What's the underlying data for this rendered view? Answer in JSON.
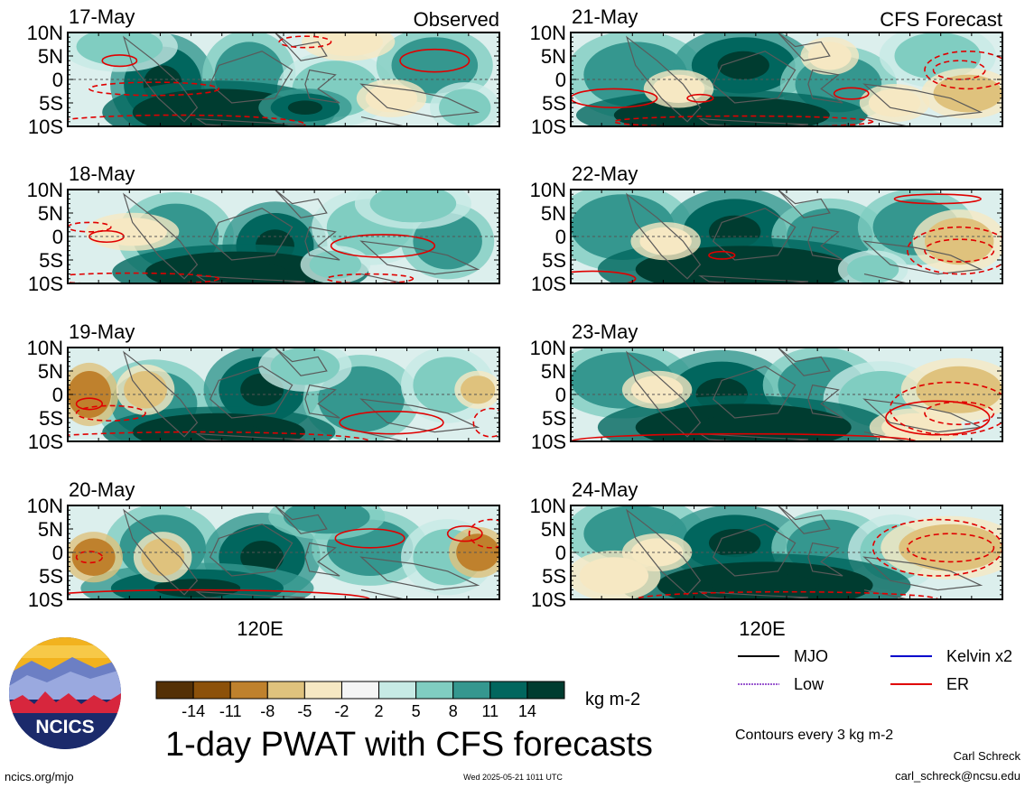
{
  "headers": {
    "observed_label": "Observed",
    "forecast_label": "CFS Forecast"
  },
  "panels": [
    {
      "date": "17-May",
      "kind": "observed"
    },
    {
      "date": "18-May",
      "kind": "observed"
    },
    {
      "date": "19-May",
      "kind": "observed"
    },
    {
      "date": "20-May",
      "kind": "observed"
    },
    {
      "date": "21-May",
      "kind": "forecast"
    },
    {
      "date": "22-May",
      "kind": "forecast"
    },
    {
      "date": "23-May",
      "kind": "forecast"
    },
    {
      "date": "24-May",
      "kind": "forecast"
    }
  ],
  "axes": {
    "y_ticks": [
      "10N",
      "5N",
      "0",
      "5S",
      "10S"
    ],
    "x_tick": "120E"
  },
  "colorbar": {
    "labels": [
      "-14",
      "-11",
      "-8",
      "-5",
      "-2",
      "2",
      "5",
      "8",
      "11",
      "14"
    ],
    "colors": [
      "#543005",
      "#8c510a",
      "#bf812d",
      "#dfc27d",
      "#f6e8c3",
      "#f5f5f5",
      "#c7eae5",
      "#80cdc1",
      "#35978f",
      "#01665e",
      "#003c30"
    ],
    "units": "kg m-2"
  },
  "legend": {
    "items": [
      {
        "label": "MJO",
        "color": "#000000",
        "style": "solid"
      },
      {
        "label": "Kelvin x2",
        "color": "#0000cc",
        "style": "solid"
      },
      {
        "label": "Low",
        "color": "#9b59d0",
        "style": "solid"
      },
      {
        "label": "ER",
        "color": "#e00000",
        "style": "solid"
      }
    ],
    "contours_note": "Contours every 3 kg m-2"
  },
  "title": "1-day PWAT with CFS forecasts",
  "footer": {
    "left": "ncics.org/mjo",
    "center": "Wed 2025-05-21 1011 UTC",
    "author": "Carl Schreck",
    "email": "carl_schreck@ncsu.edu"
  },
  "logo": {
    "text": "NCICS"
  },
  "chart_data": [
    {
      "type": "heatmap",
      "panel": "17-May",
      "title": "Observed",
      "variable": "1-day PWAT anomaly",
      "units": "kg m-2",
      "y_ticks": [
        "10N",
        "5N",
        "0",
        "5S",
        "10S"
      ],
      "x_ticks": [
        "120E"
      ],
      "levels": [
        -14,
        -11,
        -8,
        -5,
        -2,
        2,
        5,
        8,
        11,
        14
      ]
    },
    {
      "type": "heatmap",
      "panel": "18-May",
      "variable": "1-day PWAT anomaly",
      "units": "kg m-2"
    },
    {
      "type": "heatmap",
      "panel": "19-May",
      "variable": "1-day PWAT anomaly",
      "units": "kg m-2"
    },
    {
      "type": "heatmap",
      "panel": "20-May",
      "variable": "1-day PWAT anomaly",
      "units": "kg m-2"
    },
    {
      "type": "heatmap",
      "panel": "21-May",
      "title": "CFS Forecast",
      "variable": "1-day PWAT anomaly",
      "units": "kg m-2"
    },
    {
      "type": "heatmap",
      "panel": "22-May",
      "variable": "1-day PWAT anomaly",
      "units": "kg m-2"
    },
    {
      "type": "heatmap",
      "panel": "23-May",
      "variable": "1-day PWAT anomaly",
      "units": "kg m-2"
    },
    {
      "type": "heatmap",
      "panel": "24-May",
      "variable": "1-day PWAT anomaly",
      "units": "kg m-2"
    }
  ]
}
